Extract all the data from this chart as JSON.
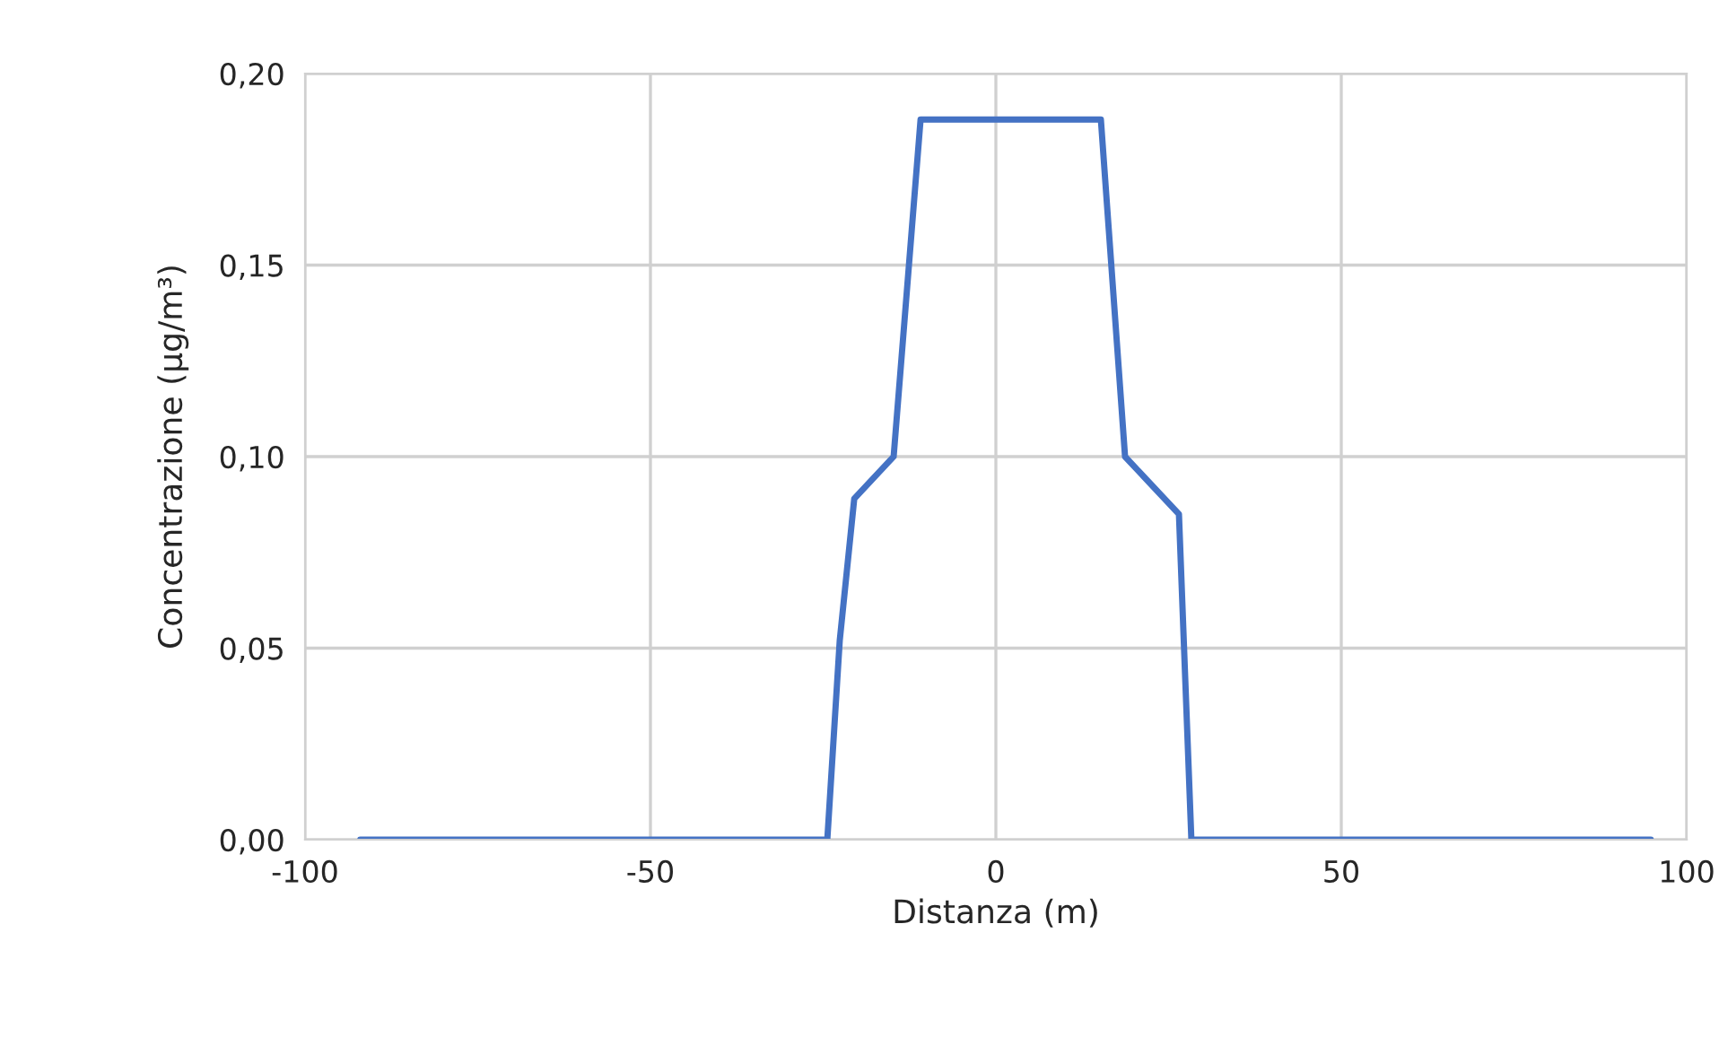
{
  "chart_data": {
    "type": "line",
    "xlabel": "Distanza (m)",
    "ylabel": "Concentrazione (µg/m³)",
    "x": [
      -92,
      -24.4,
      -22.6,
      -20.5,
      -14.8,
      -10.9,
      15.2,
      18.7,
      26.5,
      28.3,
      94.8
    ],
    "series": [
      {
        "color": "#4472c4",
        "values": [
          0,
          0,
          0.052,
          0.089,
          0.1,
          0.188,
          0.188,
          0.1,
          0.085,
          0,
          0
        ]
      }
    ],
    "xlim": [
      -100,
      100
    ],
    "xticks": [
      -100,
      -50,
      0,
      50,
      100
    ],
    "ylim": [
      0,
      0.2
    ],
    "yticks": [
      {
        "value": 0,
        "label": "0,00"
      },
      {
        "value": 0.05,
        "label": "0,05"
      },
      {
        "value": 0.1,
        "label": "0,10"
      },
      {
        "value": 0.15,
        "label": "0,15"
      },
      {
        "value": 0.2,
        "label": "0,20"
      }
    ],
    "grid": true,
    "marker": "none",
    "line_style": "solid"
  }
}
